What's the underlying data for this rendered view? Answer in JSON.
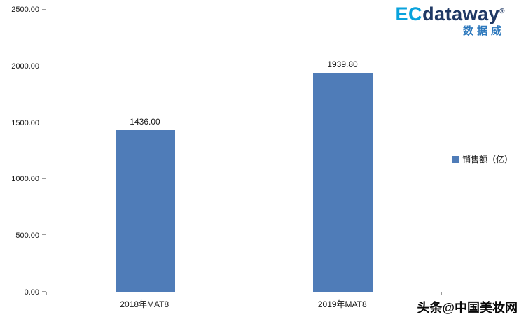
{
  "chart_data": {
    "type": "bar",
    "categories": [
      "2018年MAT8",
      "2019年MAT8"
    ],
    "values": [
      1436.0,
      1939.8
    ],
    "value_labels": [
      "1436.00",
      "1939.80"
    ],
    "series_name": "销售额（亿）",
    "title": "",
    "xlabel": "",
    "ylabel": "",
    "ylim": [
      0,
      2500
    ],
    "ytick_labels": [
      "0.00",
      "500.00",
      "1000.00",
      "1500.00",
      "2000.00",
      "2500.00"
    ],
    "grid": "off",
    "legend_position": "right",
    "bar_color": "#4f7cb8"
  },
  "legend": {
    "label": "销售额（亿）",
    "marker_color": "#4f7cb8"
  },
  "logo": {
    "ec": "EC",
    "dataway": "dataway",
    "registered": "®",
    "subtitle": "数据威"
  },
  "watermark": {
    "text": "头条@中国美妆网"
  }
}
